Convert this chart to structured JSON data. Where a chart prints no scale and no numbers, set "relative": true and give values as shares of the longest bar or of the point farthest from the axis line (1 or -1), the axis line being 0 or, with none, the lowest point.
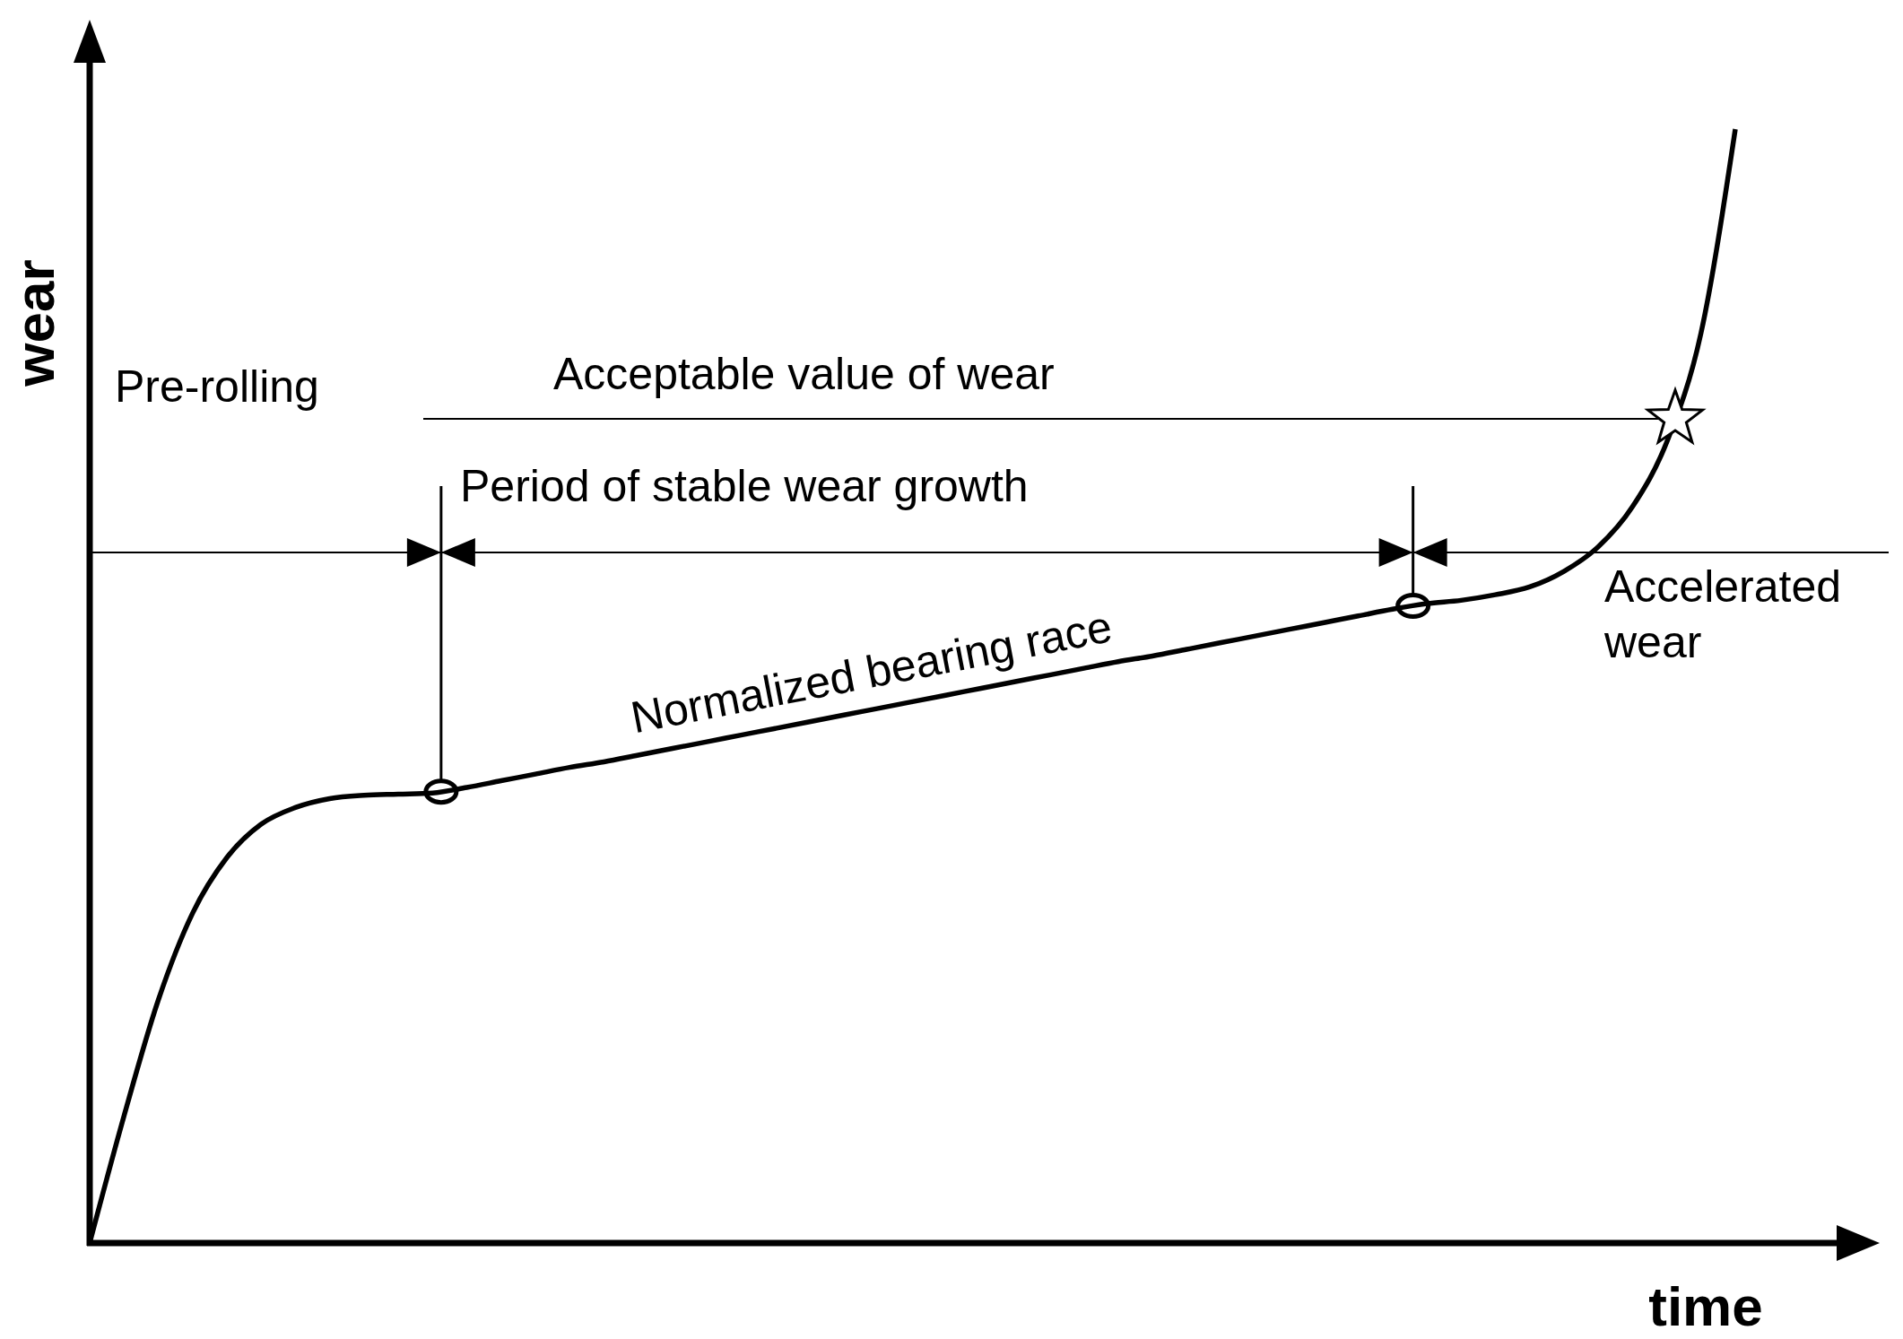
{
  "chart_data": {
    "type": "line",
    "relative": true,
    "xlabel": "time",
    "ylabel": "wear",
    "categories": [
      null,
      null,
      null,
      null,
      null,
      null,
      null,
      null,
      null,
      null,
      null,
      null,
      null,
      null,
      null,
      null,
      null,
      null,
      null,
      null,
      null,
      null,
      null,
      null,
      null,
      null,
      null,
      null,
      null,
      null,
      null,
      null,
      null,
      null,
      null,
      null,
      null,
      null,
      null,
      null,
      null,
      null,
      null,
      null,
      null,
      null,
      null,
      null,
      null
    ],
    "series": [
      {
        "color": "#000000",
        "values": [
          0,
          0.114,
          0.218,
          0.296,
          0.346,
          0.376,
          0.391,
          0.399,
          0.402,
          0.403,
          0.404,
          0.409,
          0.415,
          0.421,
          0.427,
          0.432,
          0.438,
          0.444,
          0.45,
          0.456,
          0.462,
          0.468,
          0.474,
          0.48,
          0.486,
          0.492,
          0.498,
          0.504,
          0.51,
          0.516,
          0.522,
          0.527,
          0.533,
          0.539,
          0.545,
          0.551,
          0.557,
          0.563,
          0.569,
          0.574,
          0.577,
          0.582,
          0.589,
          0.603,
          0.625,
          0.661,
          0.719,
          0.817,
          1
        ]
      }
    ],
    "ref_lines": [
      {
        "axis": "y",
        "value": 0.74,
        "label": "Acceptable value of wear",
        "color": "#000000"
      },
      {
        "axis": "y",
        "value": 0.62,
        "color": "#000000"
      }
    ],
    "annotations": [
      "Pre-rolling",
      "Period of stable wear growth",
      "Normalized bearing race",
      "Accelerated\nwear"
    ],
    "line_style": "solid"
  }
}
